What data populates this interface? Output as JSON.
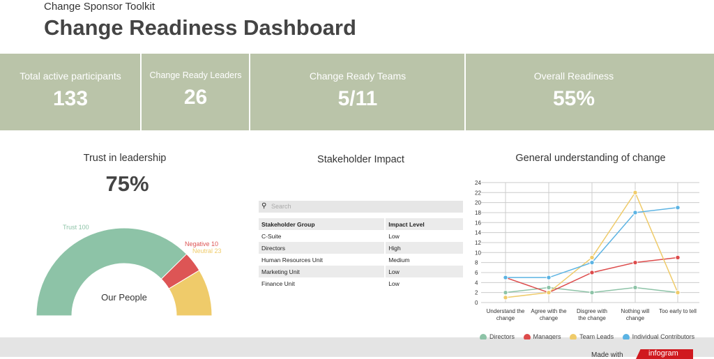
{
  "header": {
    "subtitle": "Change Sponsor Toolkit",
    "title": "Change Readiness Dashboard"
  },
  "kpis": [
    {
      "label": "Total active participants",
      "value": "133"
    },
    {
      "label": "Change Ready Leaders",
      "value": "26"
    },
    {
      "label": "Change Ready Teams",
      "value": "5/11"
    },
    {
      "label": "Overall Readiness",
      "value": "55%"
    }
  ],
  "trust": {
    "title": "Trust in leadership",
    "value": "75%",
    "center_label": "Our People",
    "slices": [
      {
        "label": "Trust 100",
        "value": 100,
        "color": "#8dc3a7"
      },
      {
        "label": "Negative 10",
        "value": 10,
        "color": "#dd5555"
      },
      {
        "label": "Neutral 23",
        "value": 23,
        "color": "#efcb6a"
      }
    ]
  },
  "stakeholder": {
    "title": "Stakeholder Impact",
    "search_placeholder": "Search",
    "columns": [
      "Stakeholder Group",
      "Impact Level"
    ],
    "rows": [
      [
        "C-Suite",
        "Low"
      ],
      [
        "Directors",
        "High"
      ],
      [
        "Human Resources Unit",
        "Medium"
      ],
      [
        "Marketing Unit",
        "Low"
      ],
      [
        "Finance Unit",
        "Low"
      ]
    ]
  },
  "chart_data": {
    "type": "line",
    "title": "General understanding of change",
    "categories": [
      "Understand the change",
      "Agree with the change",
      "Disgree with the change",
      "Nothing will change",
      "Too early to tell"
    ],
    "ylim": [
      0,
      24
    ],
    "yticks": [
      0,
      2,
      4,
      6,
      8,
      10,
      12,
      14,
      16,
      18,
      20,
      22,
      24
    ],
    "grid": true,
    "legend": "bottom",
    "series": [
      {
        "name": "Directors",
        "color": "#8dc3a7",
        "values": [
          2,
          3,
          2,
          3,
          2
        ]
      },
      {
        "name": "Managers",
        "color": "#dd4b4b",
        "values": [
          5,
          2,
          6,
          8,
          9
        ]
      },
      {
        "name": "Team Leads",
        "color": "#efcb6a",
        "values": [
          1,
          2,
          9,
          22,
          2
        ]
      },
      {
        "name": "Individual Contributors",
        "color": "#5bb3e3",
        "values": [
          5,
          5,
          8,
          18,
          19
        ]
      }
    ]
  },
  "footer": {
    "made_with": "Made with",
    "brand": "infogram"
  }
}
